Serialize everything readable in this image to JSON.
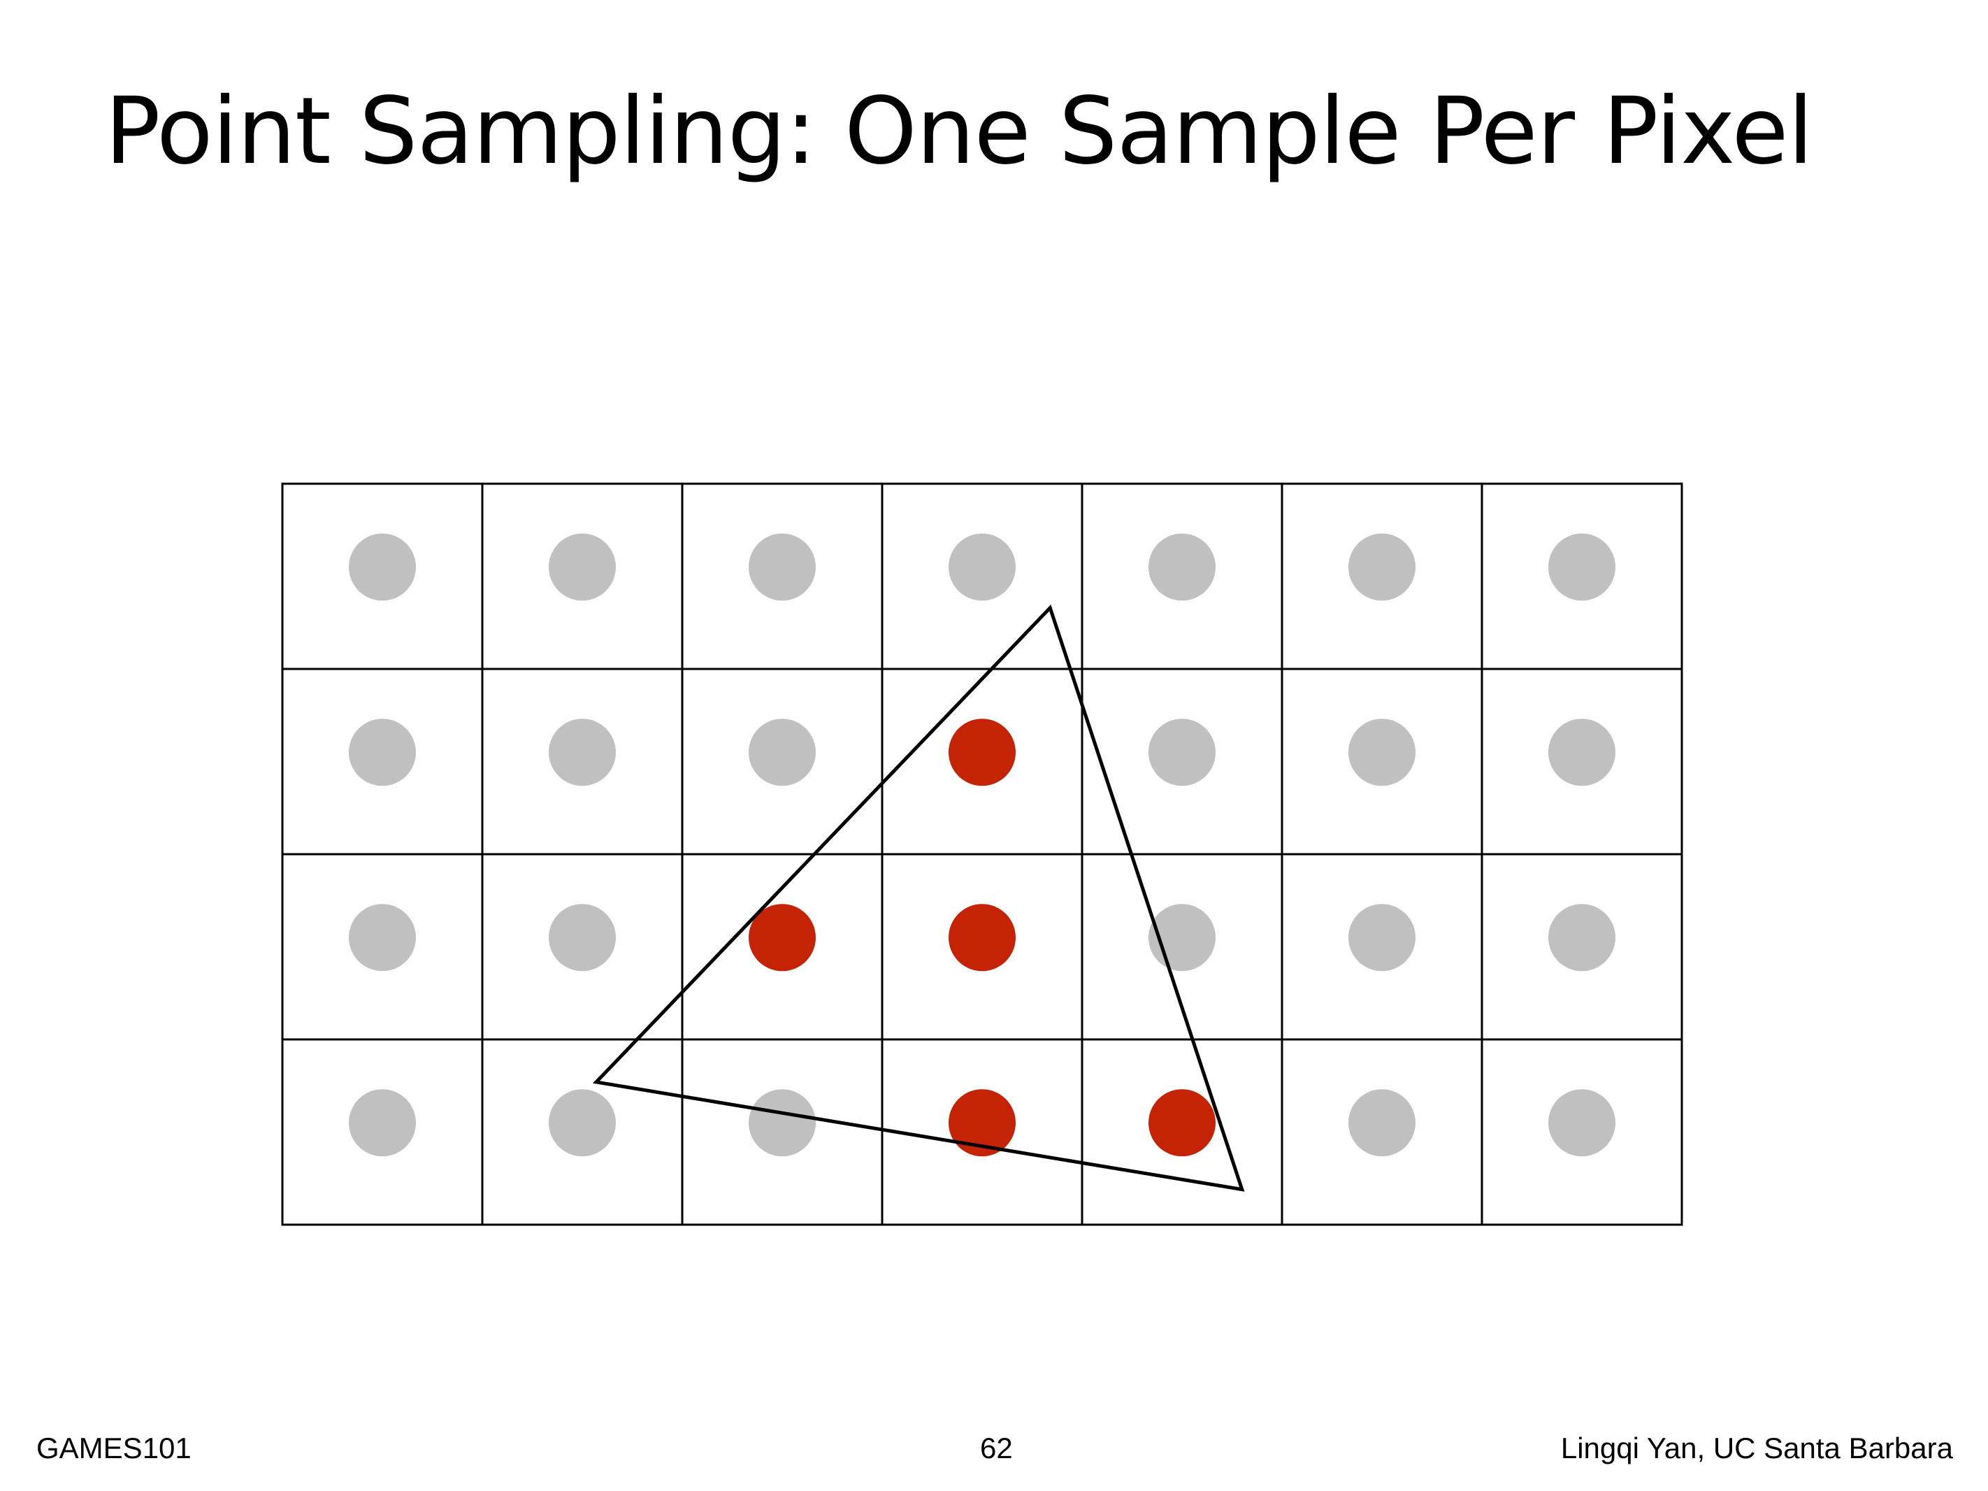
{
  "slide": {
    "title": "Point Sampling: One Sample Per Pixel",
    "page_number": "62"
  },
  "footer": {
    "course": "GAMES101",
    "author": "Lingqi Yan, UC Santa Barbara"
  },
  "diagram": {
    "grid": {
      "columns": 7,
      "rows": 4
    },
    "samples": [
      [
        "outside",
        "outside",
        "outside",
        "outside",
        "outside",
        "outside",
        "outside"
      ],
      [
        "outside",
        "outside",
        "outside",
        "inside",
        "outside",
        "outside",
        "outside"
      ],
      [
        "outside",
        "outside",
        "inside",
        "inside",
        "outside",
        "outside",
        "outside"
      ],
      [
        "outside",
        "outside",
        "outside",
        "inside",
        "inside",
        "outside",
        "outside"
      ]
    ],
    "triangle": {
      "vertices_in_pixel_units": [
        [
          3.84,
          0.67
        ],
        [
          1.57,
          3.23
        ],
        [
          4.8,
          3.81
        ]
      ]
    },
    "colors": {
      "inside": "#c42306",
      "outside": "#c0c0c0",
      "grid": "#000000",
      "triangle": "#000000"
    }
  }
}
